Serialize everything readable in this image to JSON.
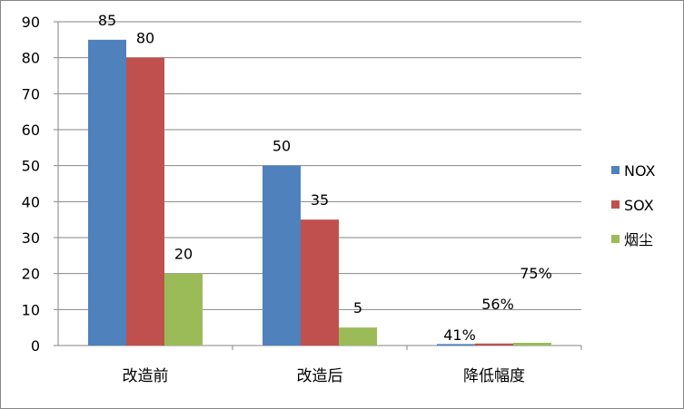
{
  "chart_data": {
    "type": "bar",
    "categories": [
      "改造前",
      "改造后",
      "降低幅度"
    ],
    "series": [
      {
        "name": "NOX",
        "color": "#4F81BD",
        "values": [
          85,
          50,
          0.41
        ],
        "labels": [
          "85",
          "50",
          "41%"
        ]
      },
      {
        "name": "SOX",
        "color": "#C0504D",
        "values": [
          80,
          35,
          0.56
        ],
        "labels": [
          "80",
          "35",
          "56%"
        ]
      },
      {
        "name": "烟尘",
        "color": "#9BBB59",
        "values": [
          20,
          5,
          0.75
        ],
        "labels": [
          "20",
          "5",
          "75%"
        ]
      }
    ],
    "ylim": [
      0,
      90
    ],
    "yticks": [
      0,
      10,
      20,
      30,
      40,
      50,
      60,
      70,
      80,
      90
    ],
    "ytick_labels": [
      "0",
      "10",
      "20",
      "30",
      "40",
      "50",
      "60",
      "70",
      "80",
      "90"
    ],
    "grid": true,
    "legend_position": "right"
  }
}
